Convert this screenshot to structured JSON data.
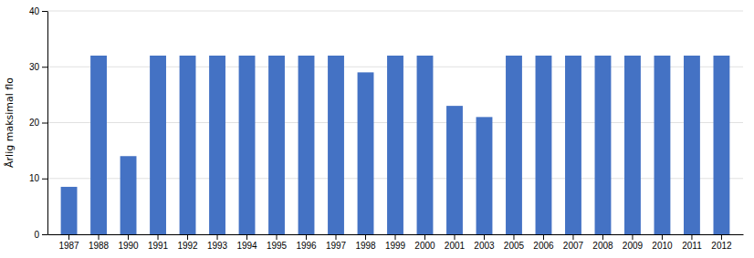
{
  "chart_data": {
    "type": "bar",
    "categories": [
      "1987",
      "1988",
      "1990",
      "1991",
      "1992",
      "1993",
      "1994",
      "1995",
      "1996",
      "1997",
      "1998",
      "1999",
      "2000",
      "2001",
      "2003",
      "2005",
      "2006",
      "2007",
      "2008",
      "2009",
      "2010",
      "2011",
      "2012"
    ],
    "values": [
      8.5,
      32.0,
      14.0,
      32.0,
      32.0,
      32.0,
      32.0,
      32.0,
      32.0,
      32.0,
      29.0,
      32.0,
      32.0,
      23.0,
      21.0,
      32.0,
      32.0,
      32.0,
      32.0,
      32.0,
      32.0,
      32.0,
      32.0
    ],
    "color": "#4472C4",
    "ylabel": "Årlig maksimal flo",
    "ylim": [
      0,
      40
    ],
    "yticks": [
      0,
      10,
      20,
      30,
      40
    ],
    "grid": true
  }
}
